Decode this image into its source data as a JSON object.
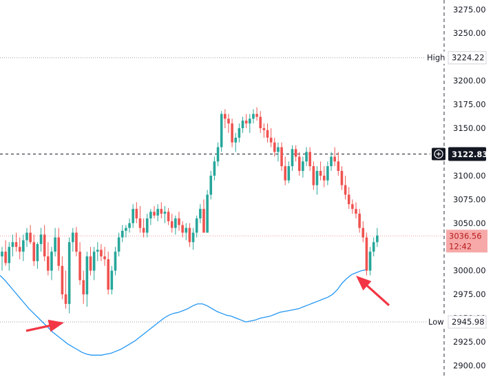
{
  "chart_data": {
    "type": "candlestick",
    "y_axis": {
      "ticks": [
        "3275.00",
        "3250.00",
        "3225.00",
        "3200.00",
        "3175.00",
        "3150.00",
        "3125.00",
        "3100.00",
        "3075.00",
        "3050.00",
        "3025.00",
        "3000.00",
        "2975.00",
        "2950.00",
        "2925.00",
        "2900.00"
      ],
      "tick_values": [
        3275,
        3250,
        3225,
        3200,
        3175,
        3150,
        3125,
        3100,
        3075,
        3050,
        3025,
        3000,
        2975,
        2950,
        2925,
        2900
      ],
      "ylim": [
        2888,
        3285
      ]
    },
    "levels": {
      "high": {
        "label": "High",
        "value": 3224.22,
        "text": "3224.22"
      },
      "low": {
        "label": "Low",
        "value": 2945.98,
        "text": "2945.98"
      },
      "crosshair": {
        "value": 3122.83,
        "text": "3122.83"
      },
      "last": {
        "value": 3036.56,
        "text": "3036.56",
        "countdown": "12:42"
      }
    },
    "colors": {
      "up": "#26a69a",
      "down": "#ef5350",
      "ma": "#2196f3",
      "arrow": "#f23645",
      "last_bg": "#f7a9a9",
      "last_text": "#b71c1c"
    },
    "candles": [
      [
        3015,
        3025,
        3000,
        3020
      ],
      [
        3020,
        3032,
        3005,
        3008
      ],
      [
        3008,
        3030,
        3000,
        3025
      ],
      [
        3025,
        3038,
        3015,
        3030
      ],
      [
        3030,
        3040,
        3020,
        3025
      ],
      [
        3025,
        3035,
        3012,
        3020
      ],
      [
        3020,
        3038,
        3010,
        3032
      ],
      [
        3032,
        3045,
        3025,
        3040
      ],
      [
        3040,
        3048,
        3028,
        3030
      ],
      [
        3030,
        3038,
        3005,
        3010
      ],
      [
        3010,
        3030,
        3002,
        3028
      ],
      [
        3028,
        3045,
        3020,
        3038
      ],
      [
        3038,
        3048,
        3010,
        3015
      ],
      [
        3015,
        3030,
        2995,
        3000
      ],
      [
        3000,
        3025,
        2990,
        3020
      ],
      [
        3020,
        3045,
        3015,
        3035
      ],
      [
        3035,
        3045,
        3000,
        3005
      ],
      [
        3005,
        3015,
        2970,
        2975
      ],
      [
        2975,
        3000,
        2960,
        2965
      ],
      [
        2965,
        3035,
        2955,
        3030
      ],
      [
        3030,
        3045,
        3020,
        3040
      ],
      [
        3040,
        3046,
        3015,
        3020
      ],
      [
        3020,
        3030,
        2985,
        2990
      ],
      [
        2990,
        3000,
        2965,
        2975
      ],
      [
        2975,
        3020,
        2962,
        3015
      ],
      [
        3015,
        3025,
        2995,
        3000
      ],
      [
        3000,
        3025,
        2990,
        3020
      ],
      [
        3020,
        3030,
        3010,
        3022
      ],
      [
        3022,
        3028,
        3010,
        3015
      ],
      [
        3015,
        3025,
        3005,
        3012
      ],
      [
        3012,
        3020,
        2975,
        2980
      ],
      [
        2980,
        3005,
        2975,
        3000
      ],
      [
        3000,
        3025,
        2995,
        3020
      ],
      [
        3020,
        3040,
        3015,
        3035
      ],
      [
        3035,
        3048,
        3030,
        3042
      ],
      [
        3042,
        3048,
        3035,
        3045
      ],
      [
        3045,
        3055,
        3040,
        3050
      ],
      [
        3050,
        3070,
        3045,
        3065
      ],
      [
        3065,
        3072,
        3050,
        3055
      ],
      [
        3055,
        3068,
        3040,
        3045
      ],
      [
        3045,
        3055,
        3035,
        3040
      ],
      [
        3040,
        3060,
        3035,
        3055
      ],
      [
        3055,
        3065,
        3048,
        3062
      ],
      [
        3062,
        3068,
        3055,
        3058
      ],
      [
        3058,
        3070,
        3052,
        3065
      ],
      [
        3065,
        3072,
        3055,
        3060
      ],
      [
        3060,
        3068,
        3050,
        3062
      ],
      [
        3062,
        3066,
        3048,
        3052
      ],
      [
        3052,
        3060,
        3040,
        3045
      ],
      [
        3045,
        3058,
        3038,
        3055
      ],
      [
        3055,
        3062,
        3042,
        3048
      ],
      [
        3048,
        3052,
        3035,
        3040
      ],
      [
        3040,
        3050,
        3032,
        3045
      ],
      [
        3045,
        3050,
        3025,
        3030
      ],
      [
        3030,
        3045,
        3022,
        3040
      ],
      [
        3040,
        3058,
        3035,
        3055
      ],
      [
        3055,
        3070,
        3050,
        3065
      ],
      [
        3065,
        3075,
        3040,
        3040
      ],
      [
        3040,
        3085,
        3040,
        3080
      ],
      [
        3080,
        3105,
        3075,
        3100
      ],
      [
        3100,
        3120,
        3095,
        3115
      ],
      [
        3115,
        3135,
        3110,
        3130
      ],
      [
        3130,
        3168,
        3125,
        3165
      ],
      [
        3165,
        3170,
        3150,
        3160
      ],
      [
        3160,
        3165,
        3145,
        3155
      ],
      [
        3155,
        3160,
        3130,
        3135
      ],
      [
        3135,
        3145,
        3125,
        3140
      ],
      [
        3140,
        3155,
        3135,
        3150
      ],
      [
        3150,
        3162,
        3145,
        3158
      ],
      [
        3158,
        3165,
        3150,
        3155
      ],
      [
        3155,
        3165,
        3145,
        3160
      ],
      [
        3160,
        3170,
        3155,
        3165
      ],
      [
        3165,
        3172,
        3158,
        3162
      ],
      [
        3162,
        3168,
        3145,
        3150
      ],
      [
        3150,
        3155,
        3140,
        3148
      ],
      [
        3148,
        3155,
        3135,
        3140
      ],
      [
        3140,
        3150,
        3130,
        3135
      ],
      [
        3135,
        3140,
        3120,
        3125
      ],
      [
        3125,
        3135,
        3115,
        3130
      ],
      [
        3130,
        3135,
        3105,
        3110
      ],
      [
        3110,
        3120,
        3090,
        3095
      ],
      [
        3095,
        3115,
        3092,
        3110
      ],
      [
        3110,
        3132,
        3105,
        3128
      ],
      [
        3128,
        3132,
        3115,
        3120
      ],
      [
        3120,
        3125,
        3100,
        3105
      ],
      [
        3105,
        3120,
        3098,
        3115
      ],
      [
        3115,
        3130,
        3110,
        3125
      ],
      [
        3125,
        3130,
        3105,
        3110
      ],
      [
        3110,
        3115,
        3085,
        3090
      ],
      [
        3090,
        3110,
        3080,
        3105
      ],
      [
        3105,
        3115,
        3095,
        3100
      ],
      [
        3100,
        3110,
        3088,
        3095
      ],
      [
        3095,
        3115,
        3090,
        3110
      ],
      [
        3110,
        3125,
        3105,
        3120
      ],
      [
        3120,
        3130,
        3110,
        3115
      ],
      [
        3115,
        3125,
        3100,
        3105
      ],
      [
        3105,
        3110,
        3085,
        3090
      ],
      [
        3090,
        3100,
        3075,
        3080
      ],
      [
        3080,
        3088,
        3065,
        3070
      ],
      [
        3070,
        3075,
        3060,
        3065
      ],
      [
        3065,
        3072,
        3055,
        3060
      ],
      [
        3060,
        3065,
        3040,
        3045
      ],
      [
        3045,
        3052,
        3030,
        3035
      ],
      [
        3035,
        3040,
        2995,
        3000
      ],
      [
        3000,
        3025,
        2995,
        3020
      ],
      [
        3020,
        3035,
        3015,
        3030
      ],
      [
        3030,
        3045,
        3025,
        3037
      ]
    ],
    "ma_values": [
      2995,
      2990,
      2984,
      2978,
      2972,
      2966,
      2960,
      2955,
      2950,
      2945,
      2940,
      2935,
      2931,
      2927,
      2923,
      2920,
      2917,
      2914,
      2912,
      2911,
      2911,
      2911,
      2912,
      2913,
      2915,
      2917,
      2920,
      2923,
      2926,
      2930,
      2934,
      2938,
      2942,
      2946,
      2950,
      2953,
      2955,
      2956,
      2958,
      2960,
      2963,
      2965,
      2965,
      2963,
      2960,
      2957,
      2955,
      2953,
      2952,
      2950,
      2948,
      2946,
      2947,
      2948,
      2950,
      2951,
      2952,
      2954,
      2956,
      2957,
      2958,
      2959,
      2960,
      2962,
      2964,
      2966,
      2968,
      2970,
      2972,
      2975,
      2980,
      2987,
      2992,
      2996,
      2998,
      3000,
      3001
    ]
  }
}
